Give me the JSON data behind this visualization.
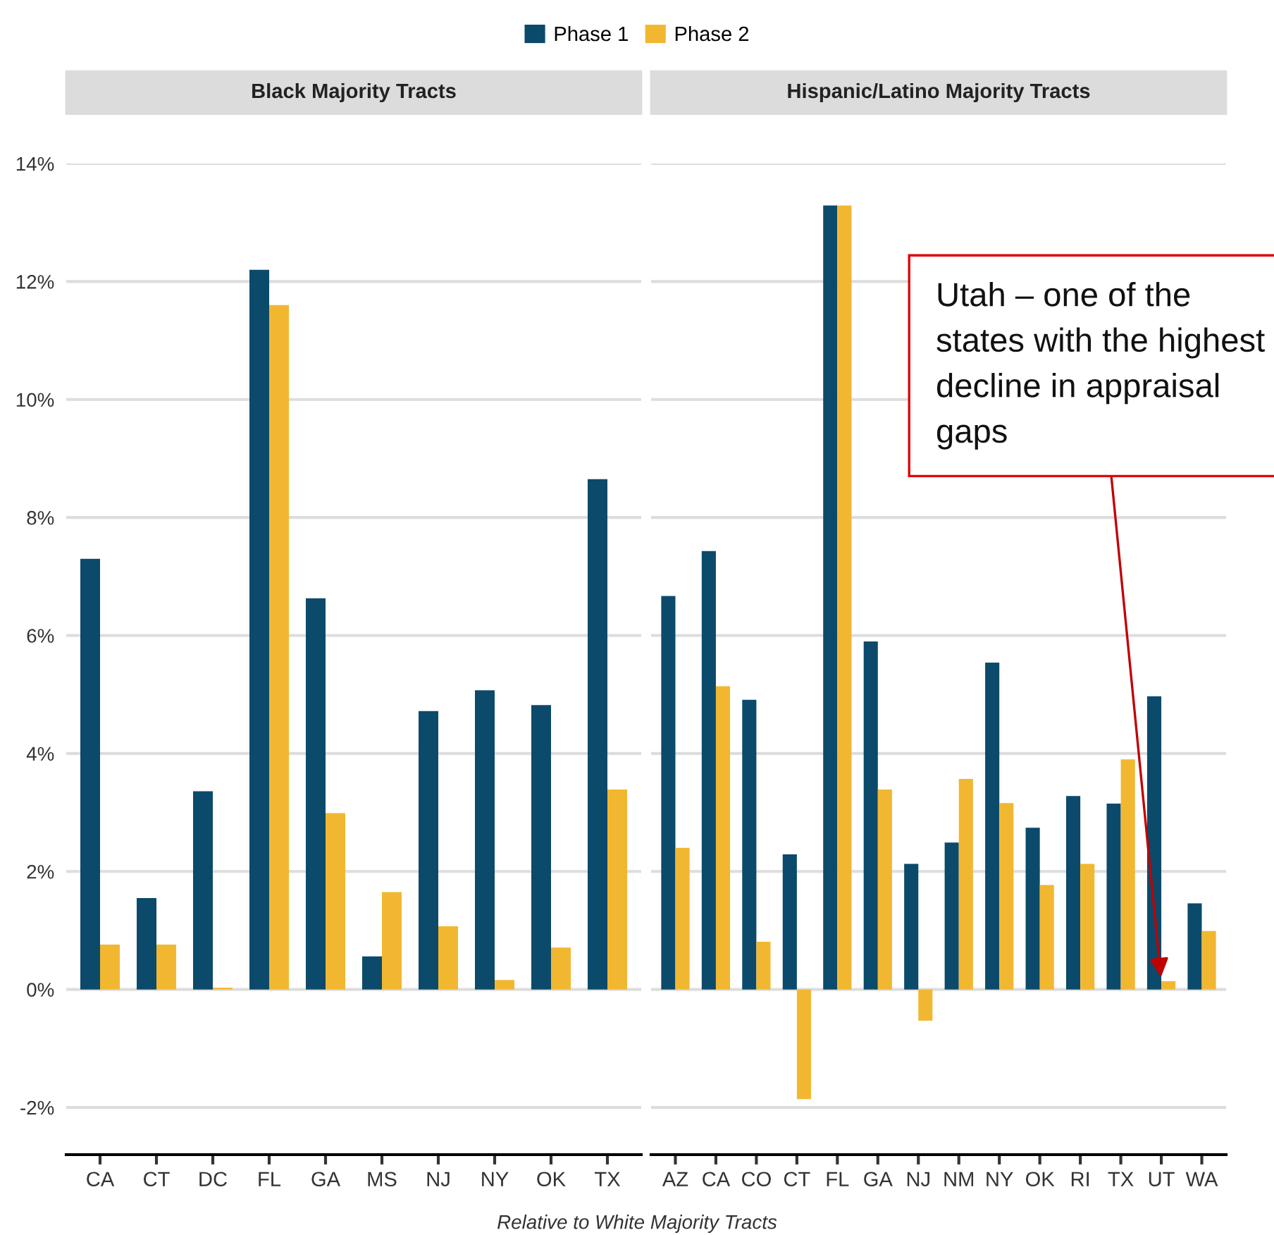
{
  "chart_data": [
    {
      "type": "bar",
      "title": "Black Majority Tracts",
      "xlabel": "Relative to White Majority Tracts",
      "categories": [
        "CA",
        "CT",
        "DC",
        "FL",
        "GA",
        "MS",
        "NJ",
        "NY",
        "OK",
        "TX"
      ],
      "series": [
        {
          "name": "Phase 1",
          "color": "#0b4a6b",
          "values": [
            7.3,
            1.55,
            3.36,
            12.2,
            6.63,
            0.56,
            4.72,
            5.07,
            4.82,
            8.65
          ]
        },
        {
          "name": "Phase 2",
          "color": "#f2b731",
          "values": [
            0.76,
            0.76,
            0.03,
            11.6,
            2.99,
            1.65,
            1.07,
            0.16,
            0.71,
            3.39
          ]
        }
      ],
      "ylim": [
        -2.8,
        14
      ],
      "yticks": [
        {
          "value": -2,
          "label": "-2%"
        },
        {
          "value": 0,
          "label": "0%"
        },
        {
          "value": 2,
          "label": "2%"
        },
        {
          "value": 4,
          "label": "4%"
        },
        {
          "value": 6,
          "label": "6%"
        },
        {
          "value": 8,
          "label": "8%"
        },
        {
          "value": 10,
          "label": "10%"
        },
        {
          "value": 12,
          "label": "12%"
        },
        {
          "value": 14,
          "label": "14%"
        }
      ],
      "grid": "y",
      "legend": "top"
    },
    {
      "type": "bar",
      "title": "Hispanic/Latino Majority Tracts",
      "categories": [
        "AZ",
        "CA",
        "CO",
        "CT",
        "FL",
        "GA",
        "NJ",
        "NM",
        "NY",
        "OK",
        "RI",
        "TX",
        "UT",
        "WA"
      ],
      "series": [
        {
          "name": "Phase 1",
          "color": "#0b4a6b",
          "values": [
            6.67,
            7.43,
            4.91,
            2.29,
            13.29,
            5.9,
            2.13,
            2.49,
            5.54,
            2.74,
            3.28,
            3.15,
            4.97,
            1.46
          ]
        },
        {
          "name": "Phase 2",
          "color": "#f2b731",
          "values": [
            2.4,
            5.14,
            0.81,
            -1.86,
            13.29,
            3.39,
            -0.53,
            3.57,
            3.16,
            1.77,
            2.13,
            3.9,
            0.14,
            0.99
          ]
        }
      ],
      "ylim": [
        -2.8,
        14
      ],
      "yticks": [
        {
          "value": -2,
          "label": null
        },
        {
          "value": 0,
          "label": null
        },
        {
          "value": 2,
          "label": null
        },
        {
          "value": 4,
          "label": null
        },
        {
          "value": 6,
          "label": null
        },
        {
          "value": 8,
          "label": null
        },
        {
          "value": 10,
          "label": null
        },
        {
          "value": 12,
          "label": null
        },
        {
          "value": 14,
          "label": null
        }
      ],
      "tick_labels": "x",
      "grid": "y",
      "annotations": [
        {
          "text": "Utah – one of the states with the highest decline in appraisal gaps",
          "x": "UT",
          "y": 0.14
        }
      ]
    }
  ]
}
